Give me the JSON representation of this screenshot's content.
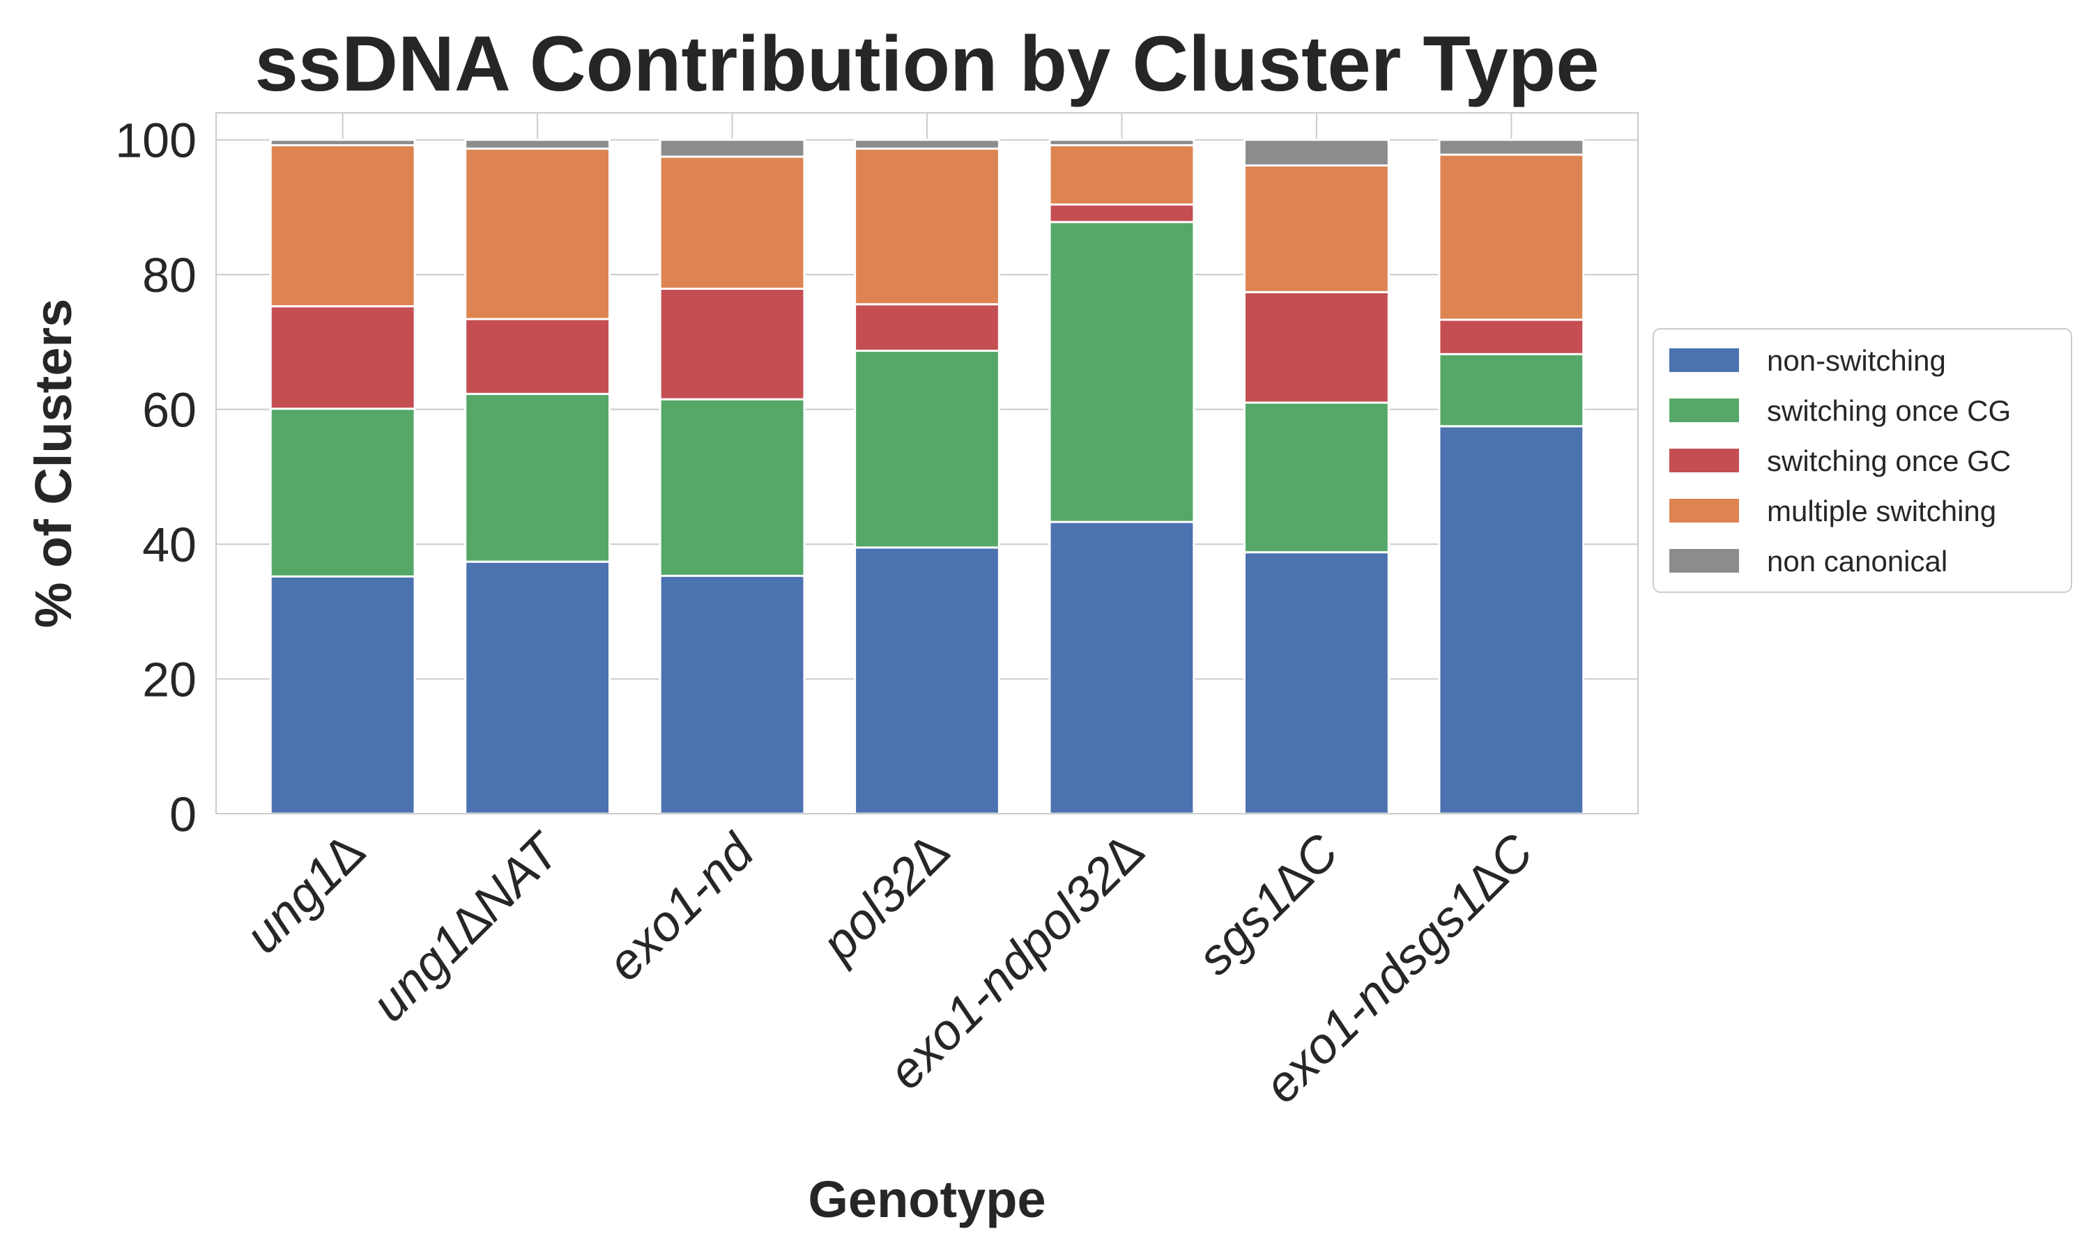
{
  "chart_data": {
    "type": "bar",
    "stacked": true,
    "title": "ssDNA Contribution by Cluster Type",
    "xlabel": "Genotype",
    "ylabel": "% of Clusters",
    "ylim": [
      0,
      104
    ],
    "yticks": [
      0,
      20,
      40,
      60,
      80,
      100
    ],
    "grid": true,
    "legend_position": "right",
    "categories": [
      "ung1∆",
      "ung1∆NAT",
      "exo1-nd",
      "pol32∆",
      "exo1-ndpol32∆",
      "sgs1∆C",
      "exo1-ndsgs1∆C"
    ],
    "series": [
      {
        "name": "non-switching",
        "color": "#4c72b0",
        "values": [
          35.2,
          37.4,
          35.3,
          39.5,
          43.3,
          38.8,
          57.5
        ]
      },
      {
        "name": "switching once CG",
        "color": "#55a868",
        "values": [
          24.9,
          24.9,
          26.2,
          29.2,
          44.5,
          22.2,
          10.7
        ]
      },
      {
        "name": "switching once GC",
        "color": "#c44e52",
        "values": [
          15.2,
          11.1,
          16.4,
          6.9,
          2.6,
          16.4,
          5.1
        ]
      },
      {
        "name": "multiple switching",
        "color": "#dd8452",
        "values": [
          23.9,
          25.3,
          19.6,
          23.1,
          8.8,
          18.8,
          24.5
        ]
      },
      {
        "name": "non canonical",
        "color": "#8c8c8c",
        "values": [
          0.8,
          1.3,
          2.5,
          1.3,
          0.8,
          3.8,
          2.2
        ]
      }
    ]
  }
}
